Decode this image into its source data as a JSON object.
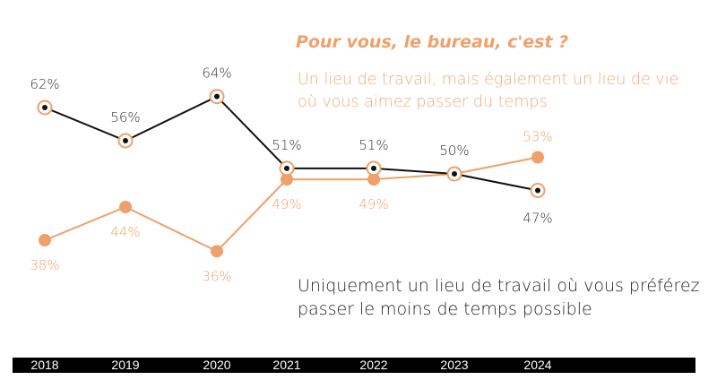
{
  "title": "Pour vous, le bureau, c'est ?",
  "chart_data": {
    "type": "line",
    "x": [
      "2018",
      "2019",
      "2020",
      "2021",
      "2022",
      "2023",
      "2024"
    ],
    "ylim": [
      30,
      70
    ],
    "grid": false,
    "series": [
      {
        "name": "Un lieu de travail, mais également un lieu de vie où vous aimez passer du temps",
        "color": "#f0a06a",
        "values": [
          38,
          44,
          36,
          49,
          49,
          50,
          53
        ],
        "labels": [
          "38%",
          "44%",
          "36%",
          "49%",
          "49%",
          "",
          "53%"
        ]
      },
      {
        "name": "Uniquement un lieu de travail où vous préférez passer le moins de temps possible",
        "color": "#111111",
        "values": [
          62,
          56,
          64,
          51,
          51,
          50,
          47
        ],
        "labels": [
          "62%",
          "56%",
          "64%",
          "51%",
          "51%",
          "50%",
          "47%"
        ]
      }
    ],
    "colors": {
      "axis_bar": "#000000",
      "orange": "#f0a06a",
      "black": "#111111"
    }
  }
}
